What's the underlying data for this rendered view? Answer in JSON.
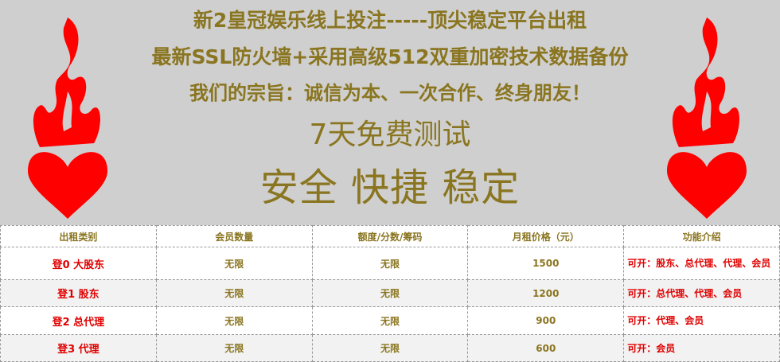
{
  "banner": {
    "line1": "新2皇冠娱乐线上投注-----顶尖稳定平台出租",
    "line2": "最新SSL防火墙+采用高级512双重加密技术数据备份",
    "line3": "我们的宗旨：诚信为本、一次合作、终身朋友！",
    "line4": "7天免费测试",
    "line5": "安全 快捷 稳定",
    "icon": "flaming-heart-icon",
    "text_color": "#8a7520",
    "icon_color": "#ff0000"
  },
  "table": {
    "headers": [
      "出租类别",
      "会员数量",
      "额度/分数/筹码",
      "月租价格（元）",
      "功能介绍"
    ],
    "rows": [
      {
        "category": "登0 大股东",
        "members": "无限",
        "credit": "无限",
        "price": "1500",
        "features": "可开：股东、总代理、代理、会员"
      },
      {
        "category": "登1 股东",
        "members": "无限",
        "credit": "无限",
        "price": "1200",
        "features": "可开：总代理、代理、会员"
      },
      {
        "category": "登2 总代理",
        "members": "无限",
        "credit": "无限",
        "price": "900",
        "features": "可开：代理、会员"
      },
      {
        "category": "登3 代理",
        "members": "无限",
        "credit": "无限",
        "price": "600",
        "features": "可开：会员"
      }
    ]
  }
}
